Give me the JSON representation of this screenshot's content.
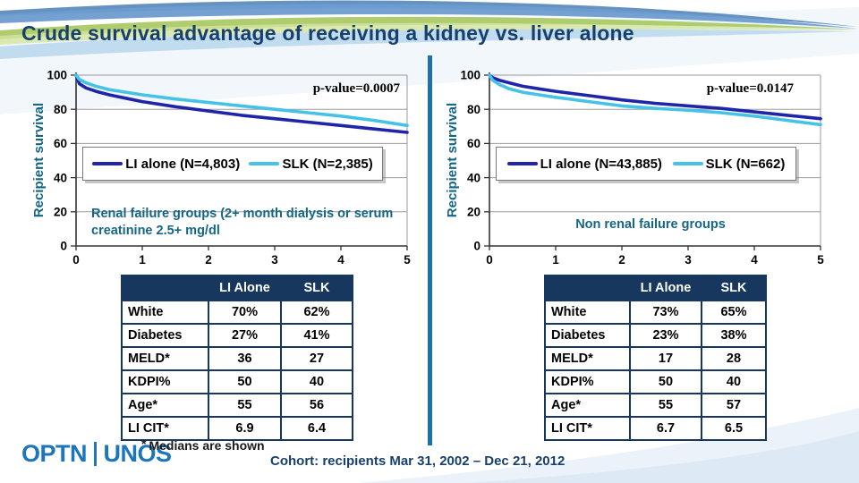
{
  "slide": {
    "title": "Crude survival advantage of receiving a kidney vs. liver alone",
    "footnote_asterisk": "*",
    "footnote": "Medians are shown",
    "cohort": "Cohort: recipients Mar 31, 2002 – Dec 21, 2012",
    "logo": {
      "left": "OPTN",
      "right": "UNOS"
    }
  },
  "colors": {
    "title": "#17406e",
    "teal_label": "#156684",
    "li_alone_line": "#1f24a8",
    "slk_line": "#45c2e5",
    "table_header_bg": "#17375e",
    "table_border": "#17375e",
    "divider": "#1d74a4",
    "grid": "#9b9b9b"
  },
  "chart_data": [
    {
      "type": "line",
      "ylabel": "Recipient survival",
      "p_value": "p-value=0.0007",
      "annotation": "Renal failure groups (2+ month dialysis or serum creatinine 2.5+ mg/dl",
      "xlim": [
        0,
        5
      ],
      "ylim": [
        0,
        100
      ],
      "xticks": [
        0,
        1,
        2,
        3,
        4,
        5
      ],
      "yticks": [
        0,
        20,
        40,
        60,
        80,
        100
      ],
      "grid": "horizontal",
      "legend_position": "inside-middle",
      "x": [
        0,
        0.05,
        0.15,
        0.3,
        0.5,
        0.75,
        1,
        1.5,
        2,
        2.5,
        3,
        3.5,
        4,
        4.5,
        5
      ],
      "series": [
        {
          "name": "LI alone (N=4,803)",
          "color": "#1f24a8",
          "values": [
            100,
            95,
            92.5,
            90.5,
            88.5,
            86.5,
            84.5,
            81.5,
            79,
            76.5,
            74.5,
            72.5,
            70.5,
            68.5,
            66.5
          ]
        },
        {
          "name": "SLK (N=2,385)",
          "color": "#45c2e5",
          "values": [
            100,
            97.5,
            95.5,
            93.5,
            91.5,
            90,
            88.5,
            86,
            84,
            82,
            80,
            78,
            76,
            73.5,
            70.5
          ]
        }
      ]
    },
    {
      "type": "line",
      "ylabel": "Recipient survival",
      "p_value": "p-value=0.0147",
      "annotation": "Non renal failure groups",
      "xlim": [
        0,
        5
      ],
      "ylim": [
        0,
        100
      ],
      "xticks": [
        0,
        1,
        2,
        3,
        4,
        5
      ],
      "yticks": [
        0,
        20,
        40,
        60,
        80,
        100
      ],
      "grid": "horizontal",
      "legend_position": "inside-middle",
      "x": [
        0,
        0.05,
        0.15,
        0.3,
        0.5,
        0.75,
        1,
        1.5,
        2,
        2.5,
        3,
        3.5,
        4,
        4.5,
        5
      ],
      "series": [
        {
          "name": "LI alone (N=43,885)",
          "color": "#1f24a8",
          "values": [
            100,
            98.5,
            97,
            95.5,
            93.5,
            92,
            90.5,
            88,
            85.5,
            83.5,
            82,
            80.5,
            78.5,
            76.5,
            74.5
          ]
        },
        {
          "name": "SLK (N=662)",
          "color": "#45c2e5",
          "values": [
            100,
            97,
            94.5,
            92,
            90,
            88.5,
            87,
            84.5,
            82,
            80.5,
            79.5,
            78,
            76,
            73.5,
            71
          ]
        }
      ]
    }
  ],
  "tables": [
    {
      "headers": [
        "",
        "LI Alone",
        "SLK"
      ],
      "rows": [
        [
          "White",
          "70%",
          "62%"
        ],
        [
          "Diabetes",
          "27%",
          "41%"
        ],
        [
          "MELD*",
          "36",
          "27"
        ],
        [
          "KDPI%",
          "50",
          "40"
        ],
        [
          "Age*",
          "55",
          "56"
        ],
        [
          "LI CIT*",
          "6.9",
          "6.4"
        ]
      ]
    },
    {
      "headers": [
        "",
        "LI Alone",
        "SLK"
      ],
      "rows": [
        [
          "White",
          "73%",
          "65%"
        ],
        [
          "Diabetes",
          "23%",
          "38%"
        ],
        [
          "MELD*",
          "17",
          "28"
        ],
        [
          "KDPI%",
          "50",
          "40"
        ],
        [
          "Age*",
          "55",
          "57"
        ],
        [
          "LI CIT*",
          "6.7",
          "6.5"
        ]
      ]
    }
  ]
}
